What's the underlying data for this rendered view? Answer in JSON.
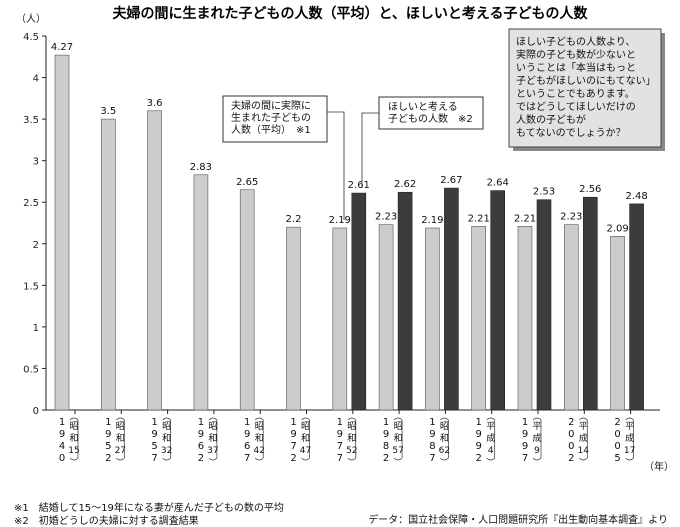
{
  "chart_data": {
    "type": "bar",
    "title": "夫婦の間に生まれた子どもの人数（平均）と、ほしいと考える子どもの人数",
    "y_unit": "（人）",
    "x_unit": "（年）",
    "ylim": [
      0,
      4.5
    ],
    "yticks": [
      "0",
      "0.5",
      "1",
      "1.5",
      "2",
      "2.5",
      "3",
      "3.5",
      "4",
      "4.5"
    ],
    "grid": false,
    "categories": [
      {
        "year": [
          "1",
          "9",
          "4",
          "0"
        ],
        "era": [
          "昭",
          "和",
          "15"
        ]
      },
      {
        "year": [
          "1",
          "9",
          "5",
          "2"
        ],
        "era": [
          "昭",
          "和",
          "27"
        ]
      },
      {
        "year": [
          "1",
          "9",
          "5",
          "7"
        ],
        "era": [
          "昭",
          "和",
          "32"
        ]
      },
      {
        "year": [
          "1",
          "9",
          "6",
          "2"
        ],
        "era": [
          "昭",
          "和",
          "37"
        ]
      },
      {
        "year": [
          "1",
          "9",
          "6",
          "7"
        ],
        "era": [
          "昭",
          "和",
          "42"
        ]
      },
      {
        "year": [
          "1",
          "9",
          "7",
          "2"
        ],
        "era": [
          "昭",
          "和",
          "47"
        ]
      },
      {
        "year": [
          "1",
          "9",
          "7",
          "7"
        ],
        "era": [
          "昭",
          "和",
          "52"
        ]
      },
      {
        "year": [
          "1",
          "9",
          "8",
          "2"
        ],
        "era": [
          "昭",
          "和",
          "57"
        ]
      },
      {
        "year": [
          "1",
          "9",
          "8",
          "7"
        ],
        "era": [
          "昭",
          "和",
          "62"
        ]
      },
      {
        "year": [
          "1",
          "9",
          "9",
          "2"
        ],
        "era": [
          "平",
          "成",
          "4"
        ]
      },
      {
        "year": [
          "1",
          "9",
          "9",
          "7"
        ],
        "era": [
          "平",
          "成",
          "9"
        ]
      },
      {
        "year": [
          "2",
          "0",
          "0",
          "2"
        ],
        "era": [
          "平",
          "成",
          "14"
        ]
      },
      {
        "year": [
          "2",
          "0",
          "0",
          "5"
        ],
        "era": [
          "平",
          "成",
          "17"
        ]
      }
    ],
    "series": [
      {
        "label": [
          "夫婦の間に実際に",
          "生まれた子どもの",
          "人数（平均）　※1"
        ],
        "color": "#cccccc",
        "values": [
          4.27,
          3.5,
          3.6,
          2.83,
          2.65,
          2.2,
          2.19,
          2.23,
          2.19,
          2.21,
          2.21,
          2.23,
          2.09
        ],
        "value_labels": [
          "4.27",
          "3.5",
          "3.6",
          "2.83",
          "2.65",
          "2.2",
          "2.19",
          "2.23",
          "2.19",
          "2.21",
          "2.21",
          "2.23",
          "2.09"
        ]
      },
      {
        "label": [
          "ほしいと考える",
          "子どもの人数　※2"
        ],
        "color": "#3c3c3c",
        "values": [
          null,
          null,
          null,
          null,
          null,
          null,
          2.61,
          2.62,
          2.67,
          2.64,
          2.53,
          2.56,
          2.48
        ],
        "value_labels": [
          "",
          "",
          "",
          "",
          "",
          "",
          "2.61",
          "2.62",
          "2.67",
          "2.64",
          "2.53",
          "2.56",
          "2.48"
        ]
      }
    ],
    "annotation": [
      "ほしい子どもの人数より、",
      "実際の子ども数が少ないと",
      "いうことは「本当はもっと",
      "子どもがほしいのにもてない」",
      "ということでもあります。",
      "ではどうしてほしいだけの",
      "人数の子どもが",
      "もてないのでしょうか？"
    ]
  },
  "footnotes": {
    "note1": "※1　結婚して15～19年になる妻が産んだ子どもの数の平均",
    "note2": "※2　初婚どうしの夫婦に対する調査結果",
    "source": "データ：国立社会保障・人口問題研究所『出生動向基本調査』より"
  }
}
